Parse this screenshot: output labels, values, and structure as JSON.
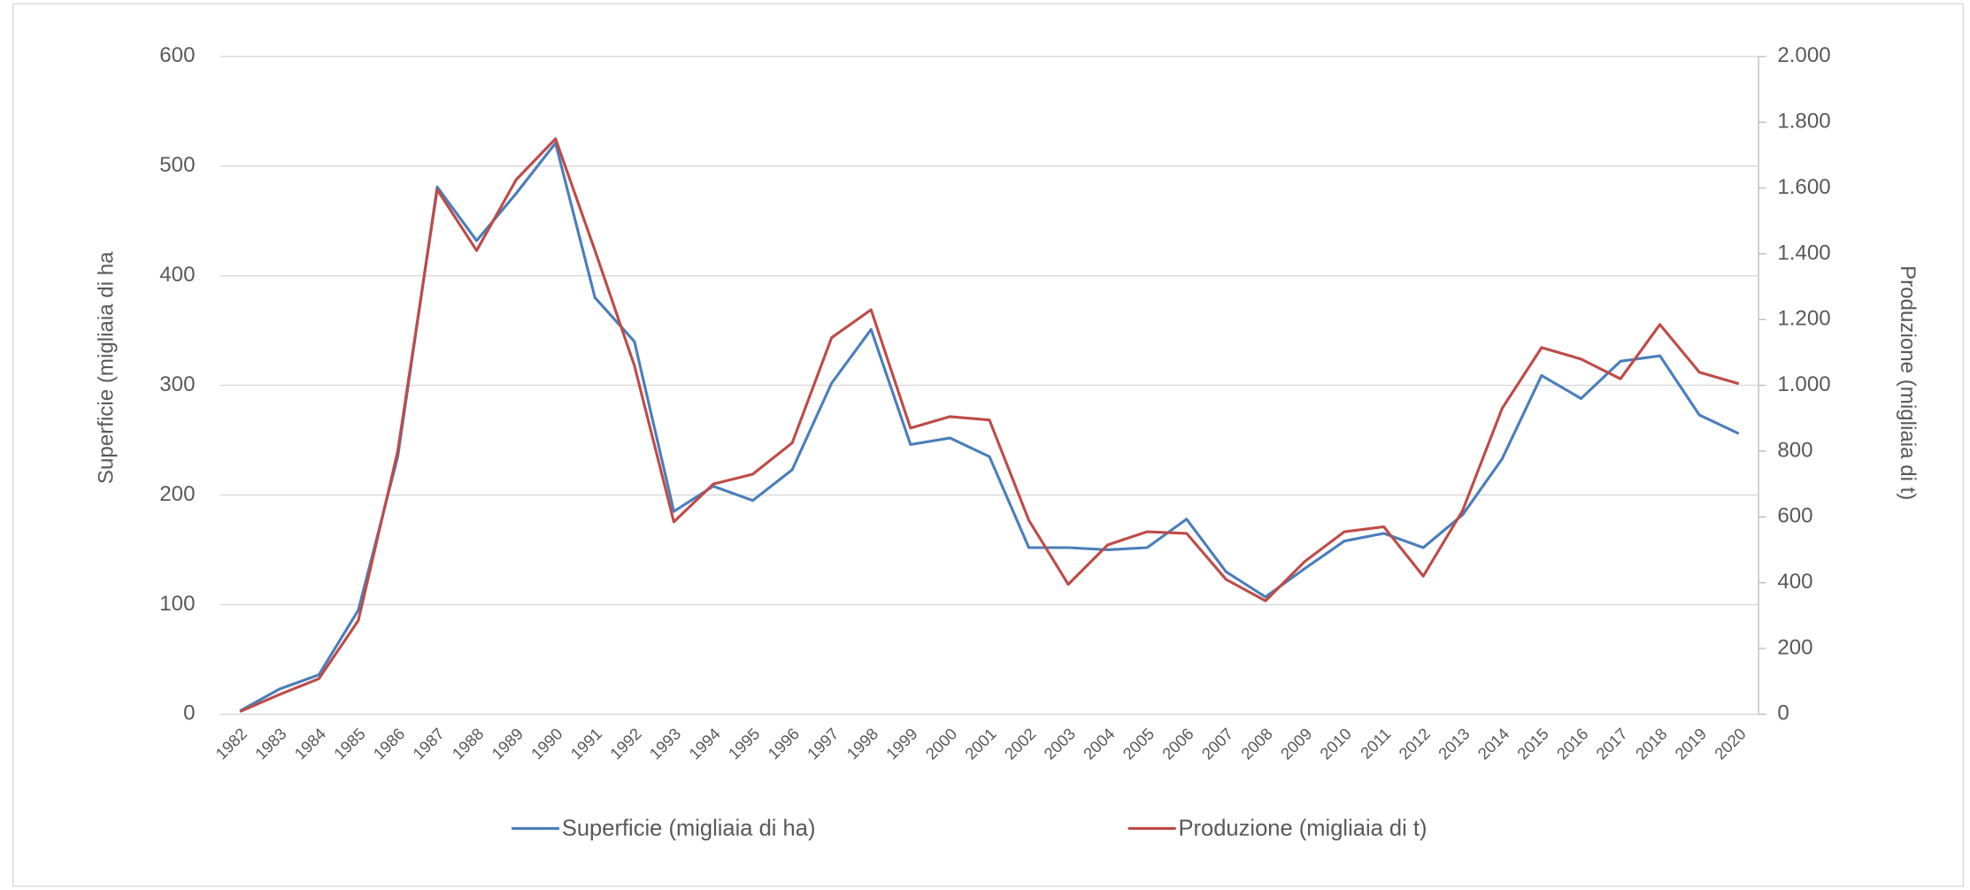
{
  "chart_data": {
    "type": "line",
    "categories": [
      "1982",
      "1983",
      "1984",
      "1985",
      "1986",
      "1987",
      "1988",
      "1989",
      "1990",
      "1991",
      "1992",
      "1993",
      "1994",
      "1995",
      "1996",
      "1997",
      "1998",
      "1999",
      "2000",
      "2001",
      "2002",
      "2003",
      "2004",
      "2005",
      "2006",
      "2007",
      "2008",
      "2009",
      "2010",
      "2011",
      "2012",
      "2013",
      "2014",
      "2015",
      "2016",
      "2017",
      "2018",
      "2019",
      "2020"
    ],
    "series": [
      {
        "name": "Superficie (migliaia di ha)",
        "color": "#4a7ebb",
        "axis": "y",
        "values": [
          3,
          23,
          36,
          95,
          235,
          481,
          432,
          475,
          521,
          380,
          340,
          185,
          208,
          195,
          223,
          302,
          351,
          246,
          252,
          235,
          152,
          152,
          150,
          152,
          178,
          130,
          107,
          133,
          158,
          165,
          152,
          182,
          233,
          309,
          288,
          322,
          327,
          273,
          256
        ]
      },
      {
        "name": "Produzione (migliaia di t)",
        "color": "#be4b48",
        "axis": "y2",
        "values": [
          8,
          60,
          108,
          285,
          800,
          1595,
          1410,
          1625,
          1750,
          1410,
          1060,
          585,
          700,
          730,
          825,
          1145,
          1230,
          870,
          905,
          895,
          590,
          395,
          515,
          555,
          550,
          410,
          345,
          465,
          555,
          570,
          420,
          620,
          930,
          1115,
          1080,
          1020,
          1185,
          1040,
          1005
        ]
      }
    ],
    "ylabel": "Superficie (migliaia di ha",
    "y2label": "Produzione (migliaia di t)",
    "ylim": [
      0,
      600
    ],
    "yticks": [
      0,
      100,
      200,
      300,
      400,
      500,
      600
    ],
    "y2lim": [
      0,
      2000
    ],
    "y2ticks": [
      0,
      200,
      400,
      600,
      800,
      {
        "value": 1000,
        "label": "1.000"
      },
      {
        "value": 1200,
        "label": "1.200"
      },
      {
        "value": 1400,
        "label": "1.400"
      },
      {
        "value": 1600,
        "label": "1.600"
      },
      {
        "value": 1800,
        "label": "1.800"
      },
      {
        "value": 2000,
        "label": "2.000"
      }
    ],
    "grid": true,
    "legend": "bottom"
  }
}
